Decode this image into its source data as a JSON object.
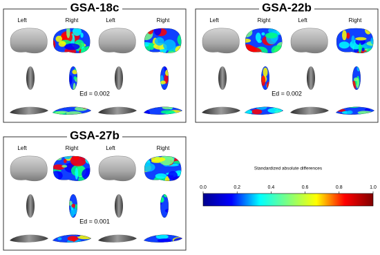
{
  "panels": [
    {
      "title": "GSA-18c",
      "view_labels": [
        "Left",
        "Right",
        "Left",
        "Right"
      ],
      "ed": "Ed = 0.002"
    },
    {
      "title": "GSA-22b",
      "view_labels": [
        "Left",
        "Right",
        "Left",
        "Right"
      ],
      "ed": "Ed = 0.002"
    },
    {
      "title": "GSA-27b",
      "view_labels": [
        "Left",
        "Right",
        "Left",
        "Right"
      ],
      "ed": "Ed = 0.001"
    }
  ],
  "colorbar": {
    "title": "Standardized absolute differences",
    "lim": [
      0,
      1
    ],
    "ticks": [
      {
        "value": 0,
        "label": "0.0"
      },
      0.2,
      0.4,
      0.6,
      0.8,
      {
        "value": 1,
        "label": "1.0"
      }
    ],
    "colors": [
      "#00008f",
      "#0000ff",
      "#00ffff",
      "#7fff7f",
      "#ffff00",
      "#ff0000",
      "#800000"
    ]
  }
}
